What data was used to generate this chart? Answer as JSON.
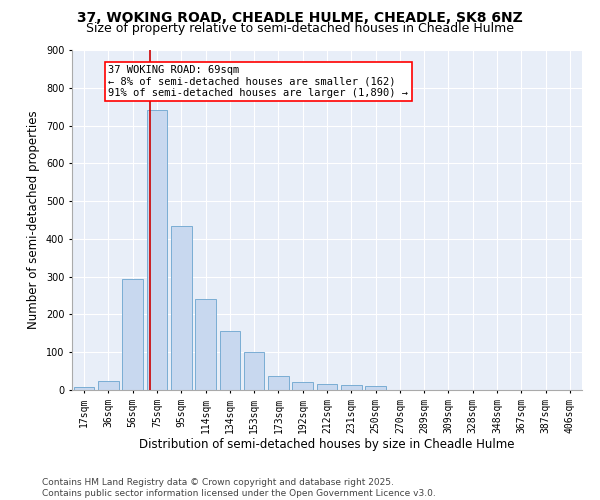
{
  "title": "37, WOKING ROAD, CHEADLE HULME, CHEADLE, SK8 6NZ",
  "subtitle": "Size of property relative to semi-detached houses in Cheadle Hulme",
  "xlabel": "Distribution of semi-detached houses by size in Cheadle Hulme",
  "ylabel": "Number of semi-detached properties",
  "categories": [
    "17sqm",
    "36sqm",
    "56sqm",
    "75sqm",
    "95sqm",
    "114sqm",
    "134sqm",
    "153sqm",
    "173sqm",
    "192sqm",
    "212sqm",
    "231sqm",
    "250sqm",
    "270sqm",
    "289sqm",
    "309sqm",
    "328sqm",
    "348sqm",
    "367sqm",
    "387sqm",
    "406sqm"
  ],
  "values": [
    8,
    25,
    295,
    740,
    435,
    240,
    155,
    100,
    38,
    20,
    15,
    12,
    10,
    0,
    0,
    0,
    0,
    0,
    0,
    0,
    0
  ],
  "bar_color": "#c8d8ef",
  "bar_edge_color": "#7aadd4",
  "vline_color": "#cc0000",
  "annotation_title": "37 WOKING ROAD: 69sqm",
  "annotation_line1": "← 8% of semi-detached houses are smaller (162)",
  "annotation_line2": "91% of semi-detached houses are larger (1,890) →",
  "ylim": [
    0,
    900
  ],
  "yticks": [
    0,
    100,
    200,
    300,
    400,
    500,
    600,
    700,
    800,
    900
  ],
  "footer1": "Contains HM Land Registry data © Crown copyright and database right 2025.",
  "footer2": "Contains public sector information licensed under the Open Government Licence v3.0.",
  "bg_color": "#ffffff",
  "plot_bg_color": "#e8eef8",
  "title_fontsize": 10,
  "subtitle_fontsize": 9,
  "axis_label_fontsize": 8.5,
  "tick_fontsize": 7,
  "footer_fontsize": 6.5,
  "annotation_fontsize": 7.5,
  "vline_x_index": 2.72
}
